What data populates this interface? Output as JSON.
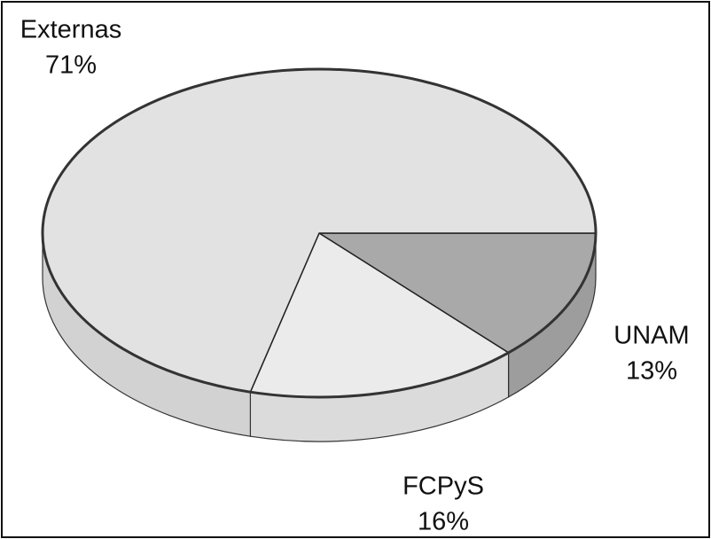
{
  "chart_data": {
    "type": "pie",
    "categories": [
      "UNAM",
      "FCPyS",
      "Externas"
    ],
    "values": [
      13,
      16,
      71
    ],
    "value_labels": [
      "13%",
      "16%",
      "71%"
    ],
    "colors": [
      "#a9a9a9",
      "#ebebeb",
      "#e2e2e2"
    ]
  }
}
